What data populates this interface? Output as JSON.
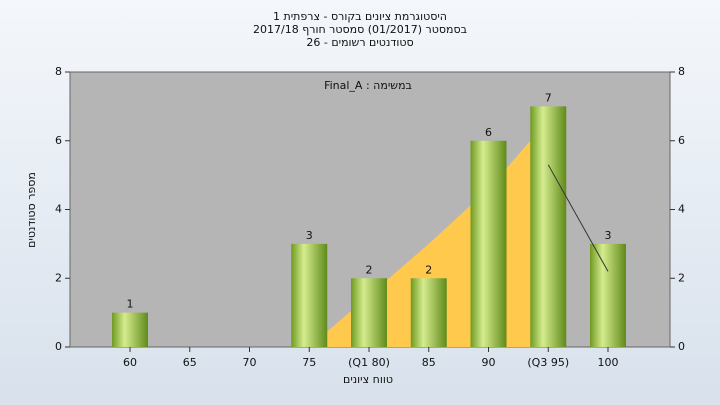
{
  "chart_data": {
    "type": "bar",
    "title": "היסטוגרמת ציונים בקורס - צרפתית 1",
    "subtitle": "בסמסטר  (01/2017)  סמסטר חורף 2017/18",
    "subtitle2": "סטודנטים רשומים - 26",
    "annotation": "במשימה : Final_A",
    "x_label": "טווח ציונים",
    "y_label": "מספר סטודנטים",
    "categories": [
      "60",
      "65",
      "70",
      "75",
      "(Q1 80)",
      "85",
      "90",
      "(Q3 95)",
      "100"
    ],
    "values": [
      1,
      0,
      0,
      3,
      2,
      2,
      6,
      7,
      3
    ],
    "color": "#8db33a",
    "area": {
      "color": "#ffc94d",
      "values": [
        null,
        null,
        null,
        0,
        1.5,
        3,
        4.6,
        6.6,
        null
      ]
    },
    "line": {
      "color": "#333333",
      "values": [
        null,
        null,
        null,
        null,
        null,
        null,
        null,
        5.3,
        2.2
      ]
    },
    "ylim": [
      0,
      8
    ],
    "yticks": [
      0,
      2,
      4,
      6,
      8
    ],
    "y2ticks": [
      0,
      2,
      4,
      6,
      8
    ]
  }
}
